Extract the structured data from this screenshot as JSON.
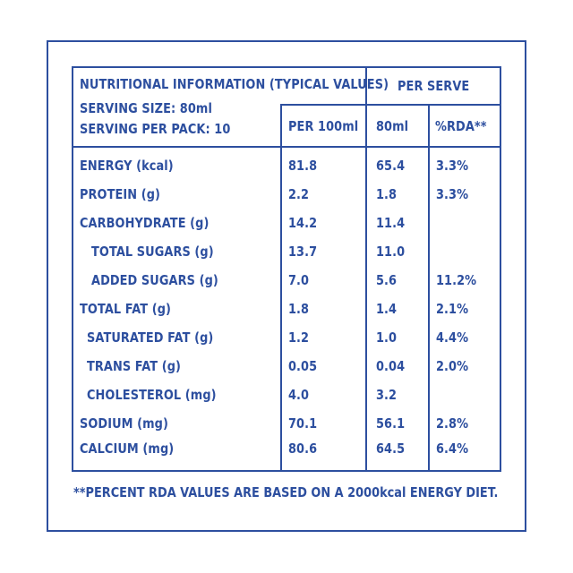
{
  "header": {
    "title": "NUTRITIONAL INFORMATION (TYPICAL VALUES)",
    "serving_size": "SERVING SIZE: 80ml",
    "serving_per_pack": "SERVING PER PACK: 10",
    "per_serve": "PER SERVE",
    "per_100": "PER 100ml",
    "per_80": "80ml",
    "rda": "%RDA**"
  },
  "rows": [
    {
      "name": "ENERGY (kcal)",
      "per100": "81.8",
      "per80": "65.4",
      "rda": "3.3%"
    },
    {
      "name": "PROTEIN (g)",
      "per100": "2.2",
      "per80": "1.8",
      "rda": "3.3%"
    },
    {
      "name": "CARBOHYDRATE (g)",
      "per100": "14.2",
      "per80": "11.4",
      "rda": ""
    },
    {
      "name": "TOTAL SUGARS (g)",
      "per100": "13.7",
      "per80": "11.0",
      "rda": ""
    },
    {
      "name": "ADDED SUGARS (g)",
      "per100": "7.0",
      "per80": "5.6",
      "rda": "11.2%"
    },
    {
      "name": "TOTAL FAT (g)",
      "per100": "1.8",
      "per80": "1.4",
      "rda": "2.1%"
    },
    {
      "name": "SATURATED FAT (g)",
      "per100": "1.2",
      "per80": "1.0",
      "rda": "4.4%"
    },
    {
      "name": "TRANS FAT (g)",
      "per100": "0.05",
      "per80": "0.04",
      "rda": "2.0%"
    },
    {
      "name": "CHOLESTEROL (mg)",
      "per100": "4.0",
      "per80": "3.2",
      "rda": ""
    },
    {
      "name": "SODIUM (mg)",
      "per100": "70.1",
      "per80": "56.1",
      "rda": "2.8%"
    },
    {
      "name": "CALCIUM (mg)",
      "per100": "80.6",
      "per80": "64.5",
      "rda": "6.4%"
    }
  ],
  "footnote": "**PERCENT RDA VALUES ARE BASED ON A 2000kcal ENERGY DIET.",
  "colors": {
    "ink": "#2d4f9f",
    "background": "#ffffff"
  }
}
